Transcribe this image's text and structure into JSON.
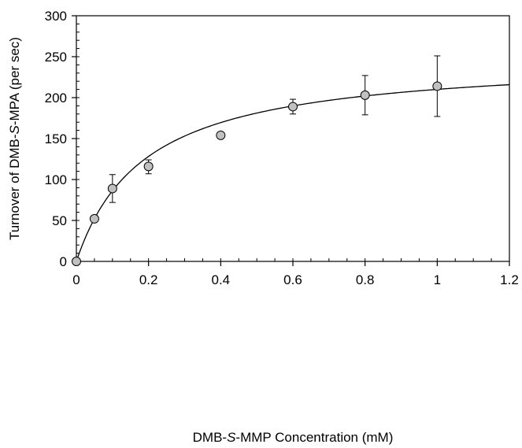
{
  "chart_data": {
    "type": "scatter",
    "xlabel": "DMB-S-MMP Concentration (mM)",
    "ylabel": "Turnover of DMB-S-MPA (per sec)",
    "xlim": [
      0,
      1.2
    ],
    "ylim": [
      0,
      300
    ],
    "x_ticks": [
      0,
      0.2,
      0.4,
      0.6,
      0.8,
      1,
      1.2
    ],
    "y_ticks": [
      0,
      50,
      100,
      150,
      200,
      250,
      300
    ],
    "x_tick_labels": [
      "0",
      "0.2",
      "0.4",
      "0.6",
      "0.8",
      "1",
      "1.2"
    ],
    "y_tick_labels": [
      "0",
      "50",
      "100",
      "150",
      "200",
      "250",
      "300"
    ],
    "x_minor_step": 0.05,
    "y_minor_step": 10,
    "grid": false,
    "legend": "none",
    "marker_color": "#c0c0c0",
    "line_color": "#000000",
    "series": [
      {
        "x": [
          0,
          0.05,
          0.1,
          0.2,
          0.4,
          0.6,
          0.8,
          1.0
        ],
        "y": [
          0,
          52,
          89,
          116,
          154,
          189,
          203,
          214
        ],
        "y_err_low": [
          0,
          0,
          17,
          9,
          3,
          9,
          24,
          37
        ],
        "y_err_high": [
          0,
          0,
          17,
          8,
          3,
          9,
          24,
          37
        ]
      }
    ],
    "fit_curve": {
      "model": "michaelis-menten",
      "vmax": 250,
      "km": 0.19
    }
  }
}
